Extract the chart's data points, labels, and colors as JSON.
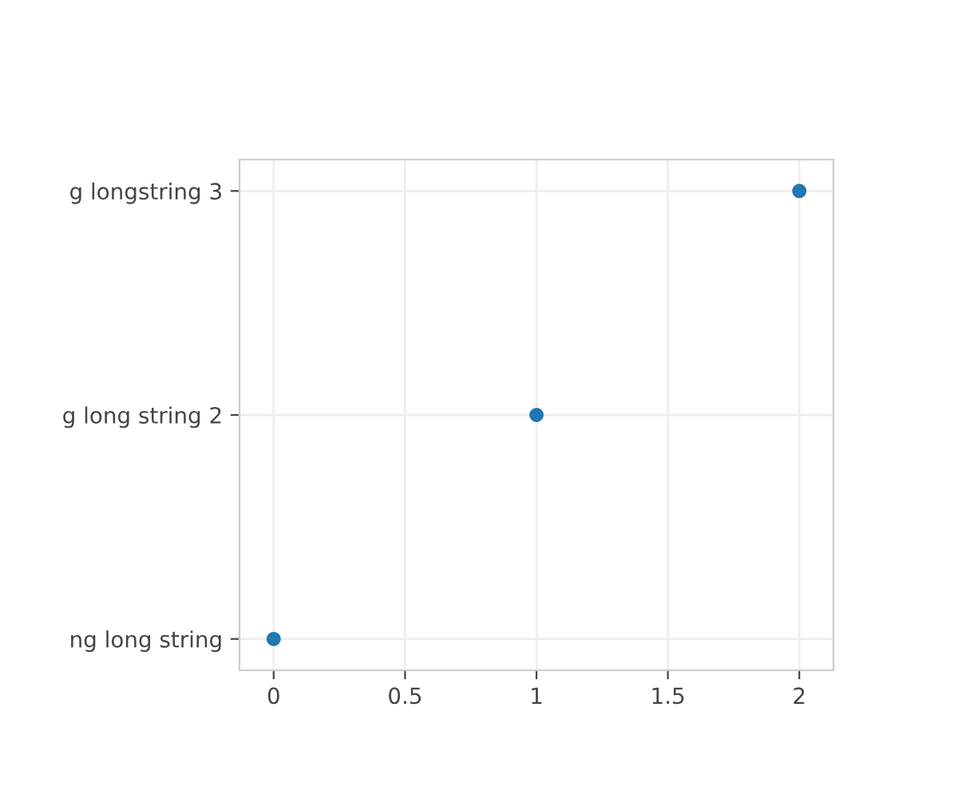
{
  "chart_data": {
    "type": "scatter",
    "orientation": "horizontal",
    "categories": [
      "g longstring 3",
      "g long string 2",
      "ng long string"
    ],
    "values": [
      2,
      1,
      0
    ],
    "color": "#1f77b4",
    "marker": "circle",
    "xlim": [
      -0.13,
      2.13
    ],
    "xticks": [
      0,
      0.5,
      1,
      1.5,
      2
    ],
    "grid": true
  }
}
